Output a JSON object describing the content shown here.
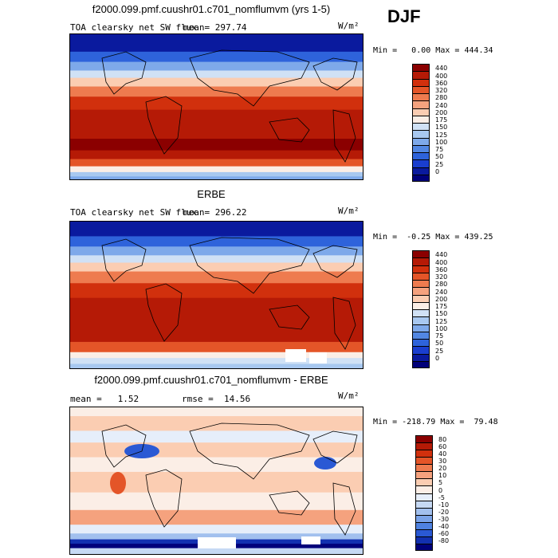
{
  "season": "DJF",
  "units_label": "W/m²",
  "panels": [
    {
      "title": "f2000.099.pmf.cuushr01.c701_nomflumvm (yrs 1-5)",
      "variable": "TOA clearsky net SW flux",
      "mean_text": "mean= 297.74",
      "min_label": "Min =",
      "min_value": "0.00",
      "max_label": "Max =",
      "max_value": "444.34",
      "legend": {
        "labels": [
          "440",
          "400",
          "360",
          "320",
          "280",
          "240",
          "200",
          "175",
          "150",
          "125",
          "100",
          "75",
          "50",
          "25",
          "0"
        ],
        "colors": [
          "#8b0000",
          "#b51a06",
          "#d1300d",
          "#e45528",
          "#ee7b4f",
          "#f5a27e",
          "#fbcdb2",
          "#fbeee6",
          "#d0e1f5",
          "#a8c8f0",
          "#7ea9ea",
          "#5287e3",
          "#2e63db",
          "#1a3ecf",
          "#0a1a9e",
          "#00007a"
        ]
      },
      "field": "sw_model"
    },
    {
      "title": "ERBE",
      "variable": "TOA clearsky net SW flux",
      "mean_text": "mean= 296.22",
      "min_label": "Min =",
      "min_value": "-0.25",
      "max_label": "Max =",
      "max_value": "439.25",
      "legend": {
        "labels": [
          "440",
          "400",
          "360",
          "320",
          "280",
          "240",
          "200",
          "175",
          "150",
          "125",
          "100",
          "75",
          "50",
          "25",
          "0"
        ],
        "colors": [
          "#8b0000",
          "#b51a06",
          "#d1300d",
          "#e45528",
          "#ee7b4f",
          "#f5a27e",
          "#fbcdb2",
          "#fbeee6",
          "#d0e1f5",
          "#a8c8f0",
          "#7ea9ea",
          "#5287e3",
          "#2e63db",
          "#1a3ecf",
          "#0a1a9e",
          "#00007a"
        ]
      },
      "field": "sw_obs"
    },
    {
      "title": "f2000.099.pmf.cuushr01.c701_nomflumvm - ERBE",
      "mean_label": "mean =",
      "mean_value": "1.52",
      "rmse_label": "rmse =",
      "rmse_value": "14.56",
      "min_label": "Min =",
      "min_value": "-218.79",
      "max_label": "Max =",
      "max_value": "79.48",
      "legend": {
        "labels": [
          "80",
          "60",
          "40",
          "30",
          "20",
          "10",
          "5",
          "0",
          "-5",
          "-10",
          "-20",
          "-30",
          "-40",
          "-60",
          "-80"
        ],
        "colors": [
          "#8b0000",
          "#b51a06",
          "#d1300d",
          "#e45528",
          "#ee7b4f",
          "#f5a27e",
          "#fbcdb2",
          "#fbeee6",
          "#e6eefa",
          "#c6d9f4",
          "#a2c0ee",
          "#7aa3e8",
          "#4f82e0",
          "#2a59d4",
          "#1230b0",
          "#00007a"
        ]
      },
      "field": "sw_diff"
    }
  ]
}
